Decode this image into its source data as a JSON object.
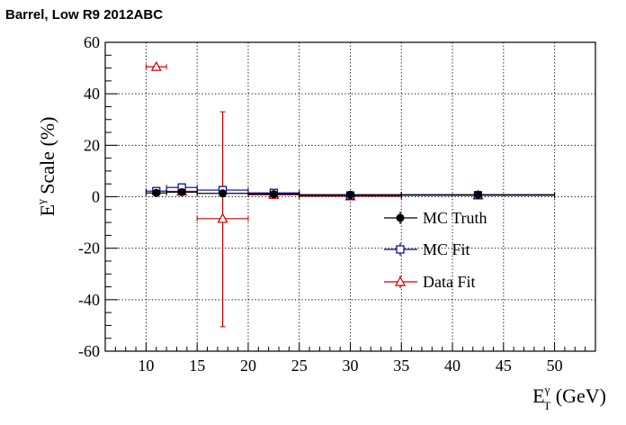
{
  "chart_data": {
    "type": "scatter",
    "title": "Barrel, Low R9 2012ABC",
    "xlabel": {
      "main": "E",
      "sup": "γ",
      "sub": "T",
      "unit": " (GeV)"
    },
    "ylabel": {
      "main": "E",
      "sup": "γ",
      "rest": " Scale (%)"
    },
    "xlim": [
      6,
      54
    ],
    "ylim": [
      -60,
      60
    ],
    "xticks": [
      "10",
      "15",
      "20",
      "25",
      "30",
      "35",
      "40",
      "45",
      "50"
    ],
    "yticks": [
      "-60",
      "-40",
      "-20",
      "0",
      "20",
      "40",
      "60"
    ],
    "grid": true,
    "legend_position": "center-right",
    "series": [
      {
        "name": "MC Truth",
        "marker": "filled-circle",
        "color": "#000000",
        "points": [
          {
            "x": 11,
            "xlo": 10,
            "xhi": 12,
            "y": 1.5,
            "ylo": 1.5,
            "yhi": 1.5
          },
          {
            "x": 13.5,
            "xlo": 12,
            "xhi": 15,
            "y": 1.8,
            "ylo": 1.8,
            "yhi": 1.8
          },
          {
            "x": 17.5,
            "xlo": 15,
            "xhi": 20,
            "y": 1.3,
            "ylo": 1.3,
            "yhi": 1.3
          },
          {
            "x": 22.5,
            "xlo": 20,
            "xhi": 25,
            "y": 1.0,
            "ylo": 1.0,
            "yhi": 1.0
          },
          {
            "x": 30,
            "xlo": 25,
            "xhi": 35,
            "y": 0.8,
            "ylo": 0.8,
            "yhi": 0.8
          },
          {
            "x": 42.5,
            "xlo": 35,
            "xhi": 50,
            "y": 0.8,
            "ylo": 0.8,
            "yhi": 0.8
          }
        ]
      },
      {
        "name": "MC Fit",
        "marker": "open-square",
        "color": "#00008b",
        "points": [
          {
            "x": 11,
            "xlo": 10,
            "xhi": 12,
            "y": 2.2,
            "ylo": 1.7,
            "yhi": 2.7
          },
          {
            "x": 13.5,
            "xlo": 12,
            "xhi": 15,
            "y": 3.6,
            "ylo": 3.0,
            "yhi": 4.2
          },
          {
            "x": 17.5,
            "xlo": 15,
            "xhi": 20,
            "y": 2.6,
            "ylo": 2.1,
            "yhi": 3.1
          },
          {
            "x": 22.5,
            "xlo": 20,
            "xhi": 25,
            "y": 1.5,
            "ylo": 1.1,
            "yhi": 1.9
          },
          {
            "x": 30,
            "xlo": 25,
            "xhi": 35,
            "y": 0.5,
            "ylo": 0.2,
            "yhi": 0.8
          },
          {
            "x": 42.5,
            "xlo": 35,
            "xhi": 50,
            "y": 0.6,
            "ylo": 0.3,
            "yhi": 0.9
          }
        ]
      },
      {
        "name": "Data Fit",
        "marker": "open-triangle",
        "color": "#cc0000",
        "points": [
          {
            "x": 11,
            "xlo": 10,
            "xhi": 12,
            "y": 50.5,
            "ylo": 50.5,
            "yhi": 50.5
          },
          {
            "x": 13.5,
            "xlo": 12,
            "xhi": 15,
            "y": 2.1,
            "ylo": 1.6,
            "yhi": 2.6
          },
          {
            "x": 17.5,
            "xlo": 15,
            "xhi": 20,
            "y": -8.5,
            "ylo": -50.5,
            "yhi": 33
          },
          {
            "x": 22.5,
            "xlo": 20,
            "xhi": 25,
            "y": 0.8,
            "ylo": 0.4,
            "yhi": 1.2
          },
          {
            "x": 30,
            "xlo": 25,
            "xhi": 35,
            "y": 0.2,
            "ylo": -0.1,
            "yhi": 0.5
          },
          {
            "x": 42.5,
            "xlo": 35,
            "xhi": 50,
            "y": 0.6,
            "ylo": 0.3,
            "yhi": 0.9
          }
        ]
      }
    ]
  }
}
